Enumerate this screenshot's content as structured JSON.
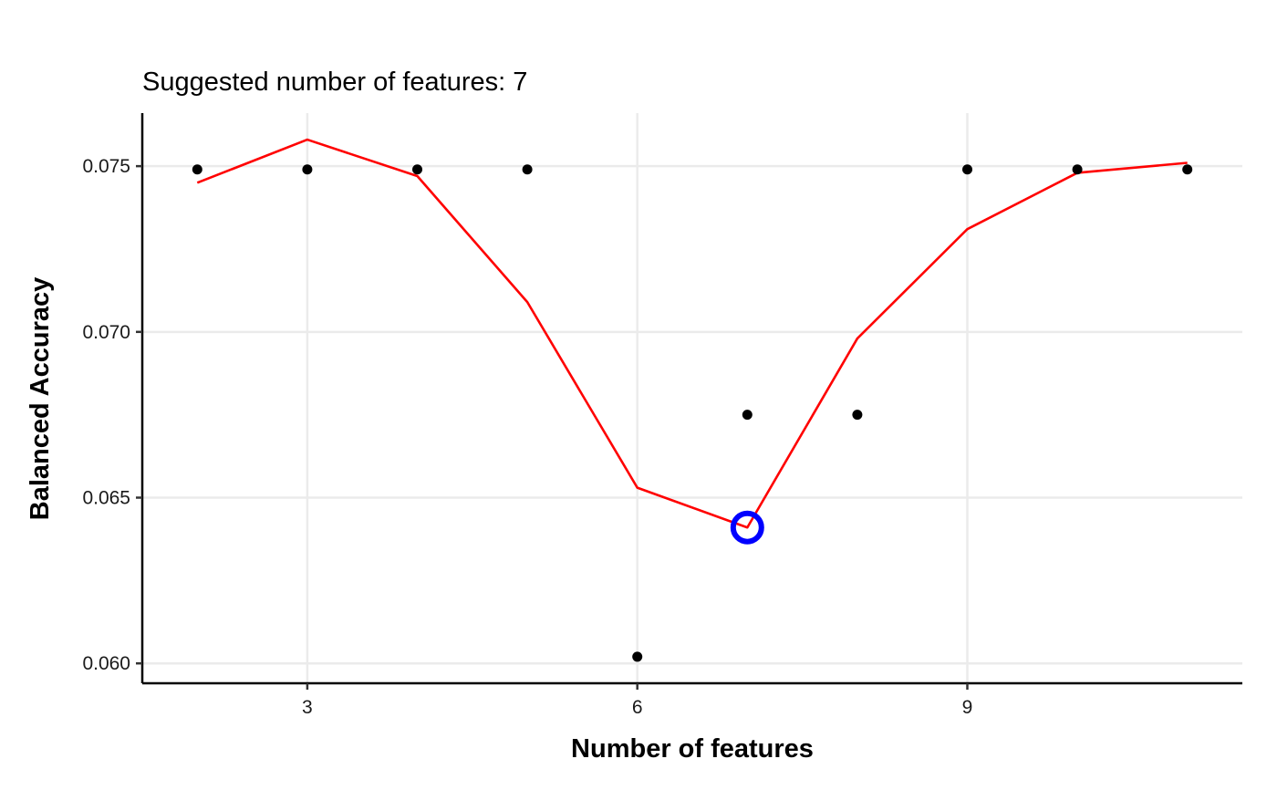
{
  "chart_data": {
    "type": "scatter",
    "title": "Suggested number of features: 7",
    "xlabel": "Number of features",
    "ylabel": "Balanced Accuracy",
    "xlim": [
      1.5,
      11.5
    ],
    "ylim": [
      0.0594,
      0.0766
    ],
    "x_ticks": [
      3,
      6,
      9
    ],
    "x_tick_labels": [
      "3",
      "6",
      "9"
    ],
    "y_ticks": [
      0.06,
      0.065,
      0.07,
      0.075
    ],
    "y_tick_labels": [
      "0.060",
      "0.065",
      "0.070",
      "0.075"
    ],
    "grid": true,
    "legend": "none",
    "points": {
      "name": "",
      "color": "#000000",
      "x": [
        2,
        3,
        4,
        5,
        6,
        7,
        8,
        9,
        10,
        11
      ],
      "y": [
        0.0749,
        0.0749,
        0.0749,
        0.0749,
        0.0602,
        0.0675,
        0.0675,
        0.0749,
        0.0749,
        0.0749
      ]
    },
    "smooth_line": {
      "name": "",
      "color": "#ff0000",
      "x": [
        2,
        3,
        4,
        5,
        6,
        7,
        8,
        9,
        10,
        11
      ],
      "y": [
        0.0745,
        0.0758,
        0.0747,
        0.0709,
        0.0653,
        0.0641,
        0.0698,
        0.0731,
        0.0748,
        0.0751
      ]
    },
    "highlight": {
      "name": "",
      "color": "#0000ff",
      "x": 7,
      "y": 0.0641
    }
  }
}
